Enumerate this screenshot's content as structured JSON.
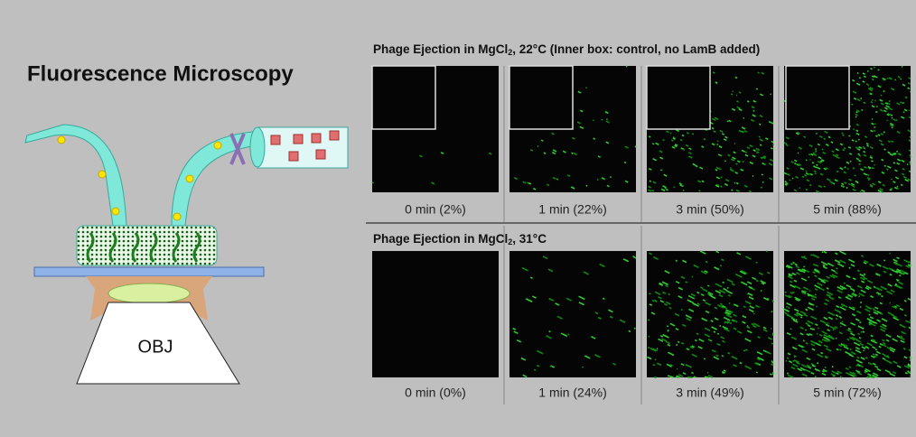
{
  "diagram": {
    "title": "Fluorescence Microscopy",
    "objective_label": "OBJ"
  },
  "rows": [
    {
      "title": {
        "prefix": "Phage Ejection in MgCl",
        "sub": "2",
        "suffix": ", 22°C (Inner box: control, no LamB added)"
      },
      "captions": [
        "0 min (2%)",
        "1 min (22%)",
        "3 min (50%)",
        "5 min (88%)"
      ]
    },
    {
      "title": {
        "prefix": "Phage Ejection in MgCl",
        "sub": "2",
        "suffix": ", 31°C"
      },
      "captions": [
        "0 min (0%)",
        "1 min (24%)",
        "3 min (49%)",
        "5 min (72%)"
      ]
    }
  ]
}
